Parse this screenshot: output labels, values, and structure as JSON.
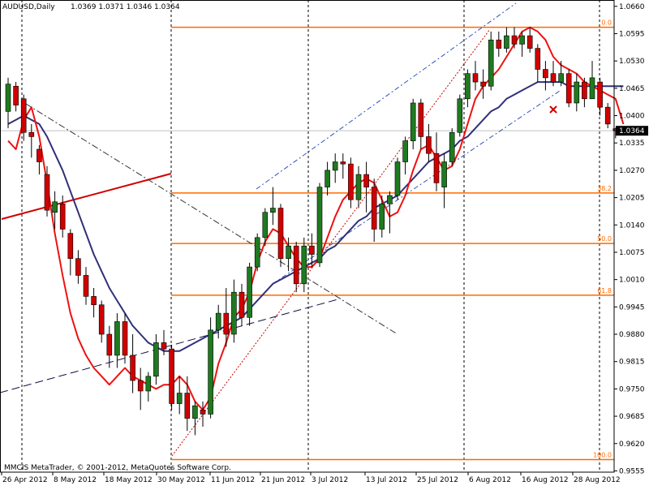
{
  "header": {
    "symbol": "AUDUSD,Daily",
    "ohlc": "1.0369 1.0371 1.0346 1.0364"
  },
  "footer": {
    "copyright": "MMCIS MetaTrader, © 2001-2012, MetaQuotes Software Corp."
  },
  "current_price": "1.0364",
  "colors": {
    "bull_candle": "#1f7a1f",
    "bear_candle": "#d10000",
    "fast_ma": "#ee1111",
    "slow_ma": "#303078",
    "fib": "#ff6a00",
    "trend_dash": "#3355bb"
  },
  "chart_data": {
    "type": "candlestick",
    "ylim": [
      0.9552,
      1.0675
    ],
    "y_ticks": [
      "1.0660",
      "1.0595",
      "1.0530",
      "1.0465",
      "1.0400",
      "1.0335",
      "1.0270",
      "1.0205",
      "1.0140",
      "1.0075",
      "1.0010",
      "0.9945",
      "0.9880",
      "0.9815",
      "0.9750",
      "0.9685",
      "0.9620",
      "0.9555"
    ],
    "x_labels": [
      "26 Apr 2012",
      "8 May 2012",
      "18 May 2012",
      "30 May 2012",
      "11 Jun 2012",
      "21 Jun 2012",
      "3 Jul 2012",
      "13 Jul 2012",
      "25 Jul 2012",
      "6 Aug 2012",
      "16 Aug 2012",
      "28 Aug 2012"
    ],
    "fib_levels": [
      {
        "label": "0.0",
        "price": 1.061
      },
      {
        "label": "38.2",
        "price": 1.0216
      },
      {
        "label": "50.0",
        "price": 1.0096
      },
      {
        "label": "61.8",
        "price": 0.9973
      },
      {
        "label": "100.0",
        "price": 0.9582
      }
    ],
    "candles": [
      {
        "o": 1.041,
        "h": 1.049,
        "l": 1.037,
        "c": 1.0475
      },
      {
        "o": 1.047,
        "h": 1.048,
        "l": 1.041,
        "c": 1.0425
      },
      {
        "o": 1.044,
        "h": 1.045,
        "l": 1.034,
        "c": 1.036
      },
      {
        "o": 1.036,
        "h": 1.038,
        "l": 1.03,
        "c": 1.035
      },
      {
        "o": 1.032,
        "h": 1.033,
        "l": 1.026,
        "c": 1.029
      },
      {
        "o": 1.026,
        "h": 1.028,
        "l": 1.016,
        "c": 1.0175
      },
      {
        "o": 1.017,
        "h": 1.022,
        "l": 1.013,
        "c": 1.0195
      },
      {
        "o": 1.019,
        "h": 1.021,
        "l": 1.011,
        "c": 1.013
      },
      {
        "o": 1.012,
        "h": 1.013,
        "l": 1.002,
        "c": 1.006
      },
      {
        "o": 1.006,
        "h": 1.008,
        "l": 1.0,
        "c": 1.002
      },
      {
        "o": 1.002,
        "h": 1.004,
        "l": 0.995,
        "c": 0.997
      },
      {
        "o": 0.997,
        "h": 0.999,
        "l": 0.992,
        "c": 0.995
      },
      {
        "o": 0.995,
        "h": 0.996,
        "l": 0.986,
        "c": 0.988
      },
      {
        "o": 0.988,
        "h": 0.99,
        "l": 0.98,
        "c": 0.983
      },
      {
        "o": 0.983,
        "h": 0.993,
        "l": 0.98,
        "c": 0.991
      },
      {
        "o": 0.991,
        "h": 0.993,
        "l": 0.981,
        "c": 0.983
      },
      {
        "o": 0.983,
        "h": 0.988,
        "l": 0.974,
        "c": 0.977
      },
      {
        "o": 0.977,
        "h": 0.98,
        "l": 0.97,
        "c": 0.9745
      },
      {
        "o": 0.9745,
        "h": 0.979,
        "l": 0.972,
        "c": 0.978
      },
      {
        "o": 0.978,
        "h": 0.988,
        "l": 0.976,
        "c": 0.986
      },
      {
        "o": 0.986,
        "h": 0.989,
        "l": 0.983,
        "c": 0.9845
      },
      {
        "o": 0.9845,
        "h": 0.9855,
        "l": 0.97,
        "c": 0.9715
      },
      {
        "o": 0.9715,
        "h": 0.978,
        "l": 0.969,
        "c": 0.974
      },
      {
        "o": 0.974,
        "h": 0.978,
        "l": 0.965,
        "c": 0.968
      },
      {
        "o": 0.968,
        "h": 0.972,
        "l": 0.964,
        "c": 0.971
      },
      {
        "o": 0.97,
        "h": 0.972,
        "l": 0.966,
        "c": 0.969
      },
      {
        "o": 0.969,
        "h": 0.992,
        "l": 0.968,
        "c": 0.989
      },
      {
        "o": 0.989,
        "h": 0.995,
        "l": 0.987,
        "c": 0.993
      },
      {
        "o": 0.993,
        "h": 0.999,
        "l": 0.985,
        "c": 0.988
      },
      {
        "o": 0.988,
        "h": 1.001,
        "l": 0.986,
        "c": 0.998
      },
      {
        "o": 0.998,
        "h": 1.0,
        "l": 0.99,
        "c": 0.992
      },
      {
        "o": 0.992,
        "h": 1.005,
        "l": 0.99,
        "c": 1.004
      },
      {
        "o": 1.004,
        "h": 1.012,
        "l": 1.003,
        "c": 1.011
      },
      {
        "o": 1.011,
        "h": 1.018,
        "l": 1.009,
        "c": 1.017
      },
      {
        "o": 1.017,
        "h": 1.023,
        "l": 1.014,
        "c": 1.018
      },
      {
        "o": 1.018,
        "h": 1.019,
        "l": 1.004,
        "c": 1.006
      },
      {
        "o": 1.006,
        "h": 1.011,
        "l": 1.003,
        "c": 1.009
      },
      {
        "o": 1.009,
        "h": 1.01,
        "l": 0.998,
        "c": 1.0
      },
      {
        "o": 1.0,
        "h": 1.011,
        "l": 0.998,
        "c": 1.009
      },
      {
        "o": 1.009,
        "h": 1.012,
        "l": 1.004,
        "c": 1.007
      },
      {
        "o": 1.005,
        "h": 1.024,
        "l": 1.004,
        "c": 1.023
      },
      {
        "o": 1.023,
        "h": 1.029,
        "l": 1.021,
        "c": 1.027
      },
      {
        "o": 1.027,
        "h": 1.031,
        "l": 1.024,
        "c": 1.029
      },
      {
        "o": 1.029,
        "h": 1.031,
        "l": 1.025,
        "c": 1.0285
      },
      {
        "o": 1.0285,
        "h": 1.03,
        "l": 1.018,
        "c": 1.02
      },
      {
        "o": 1.02,
        "h": 1.028,
        "l": 1.018,
        "c": 1.026
      },
      {
        "o": 1.026,
        "h": 1.029,
        "l": 1.017,
        "c": 1.023
      },
      {
        "o": 1.023,
        "h": 1.025,
        "l": 1.01,
        "c": 1.013
      },
      {
        "o": 1.013,
        "h": 1.021,
        "l": 1.011,
        "c": 1.019
      },
      {
        "o": 1.019,
        "h": 1.022,
        "l": 1.012,
        "c": 1.021
      },
      {
        "o": 1.021,
        "h": 1.03,
        "l": 1.02,
        "c": 1.029
      },
      {
        "o": 1.029,
        "h": 1.035,
        "l": 1.026,
        "c": 1.034
      },
      {
        "o": 1.034,
        "h": 1.044,
        "l": 1.032,
        "c": 1.043
      },
      {
        "o": 1.043,
        "h": 1.044,
        "l": 1.032,
        "c": 1.035
      },
      {
        "o": 1.035,
        "h": 1.038,
        "l": 1.029,
        "c": 1.031
      },
      {
        "o": 1.031,
        "h": 1.036,
        "l": 1.022,
        "c": 1.024
      },
      {
        "o": 1.023,
        "h": 1.031,
        "l": 1.018,
        "c": 1.029
      },
      {
        "o": 1.029,
        "h": 1.037,
        "l": 1.028,
        "c": 1.036
      },
      {
        "o": 1.036,
        "h": 1.045,
        "l": 1.035,
        "c": 1.044
      },
      {
        "o": 1.044,
        "h": 1.051,
        "l": 1.042,
        "c": 1.05
      },
      {
        "o": 1.05,
        "h": 1.053,
        "l": 1.046,
        "c": 1.048
      },
      {
        "o": 1.048,
        "h": 1.051,
        "l": 1.044,
        "c": 1.047
      },
      {
        "o": 1.047,
        "h": 1.06,
        "l": 1.046,
        "c": 1.058
      },
      {
        "o": 1.058,
        "h": 1.06,
        "l": 1.054,
        "c": 1.056
      },
      {
        "o": 1.056,
        "h": 1.061,
        "l": 1.055,
        "c": 1.059
      },
      {
        "o": 1.059,
        "h": 1.061,
        "l": 1.056,
        "c": 1.057
      },
      {
        "o": 1.057,
        "h": 1.06,
        "l": 1.054,
        "c": 1.059
      },
      {
        "o": 1.059,
        "h": 1.061,
        "l": 1.055,
        "c": 1.056
      },
      {
        "o": 1.056,
        "h": 1.057,
        "l": 1.048,
        "c": 1.051
      },
      {
        "o": 1.051,
        "h": 1.053,
        "l": 1.046,
        "c": 1.049
      },
      {
        "o": 1.05,
        "h": 1.053,
        "l": 1.047,
        "c": 1.048
      },
      {
        "o": 1.048,
        "h": 1.053,
        "l": 1.047,
        "c": 1.05
      },
      {
        "o": 1.05,
        "h": 1.051,
        "l": 1.042,
        "c": 1.043
      },
      {
        "o": 1.043,
        "h": 1.05,
        "l": 1.041,
        "c": 1.048
      },
      {
        "o": 1.048,
        "h": 1.049,
        "l": 1.042,
        "c": 1.044
      },
      {
        "o": 1.044,
        "h": 1.053,
        "l": 1.044,
        "c": 1.049
      },
      {
        "o": 1.048,
        "h": 1.049,
        "l": 1.04,
        "c": 1.042
      },
      {
        "o": 1.042,
        "h": 1.043,
        "l": 1.037,
        "c": 1.038
      },
      {
        "o": 1.0369,
        "h": 1.0371,
        "l": 1.0346,
        "c": 1.0364
      }
    ],
    "fast_ma": [
      1.034,
      1.032,
      1.039,
      1.042,
      1.035,
      1.024,
      1.012,
      1.002,
      0.993,
      0.987,
      0.983,
      0.98,
      0.978,
      0.976,
      0.978,
      0.98,
      0.978,
      0.977,
      0.976,
      0.975,
      0.976,
      0.976,
      0.978,
      0.976,
      0.972,
      0.97,
      0.973,
      0.981,
      0.986,
      0.992,
      0.994,
      0.998,
      1.005,
      1.01,
      1.013,
      1.012,
      1.009,
      1.006,
      1.004,
      1.004,
      1.006,
      1.011,
      1.016,
      1.02,
      1.022,
      1.024,
      1.025,
      1.024,
      1.02,
      1.016,
      1.017,
      1.021,
      1.027,
      1.032,
      1.033,
      1.03,
      1.027,
      1.028,
      1.032,
      1.038,
      1.044,
      1.047,
      1.049,
      1.051,
      1.054,
      1.057,
      1.06,
      1.061,
      1.06,
      1.058,
      1.054,
      1.052,
      1.051,
      1.05,
      1.048,
      1.047,
      1.046,
      1.045,
      1.044,
      1.038
    ],
    "slow_ma": [
      1.038,
      1.039,
      1.04,
      1.039,
      1.038,
      1.035,
      1.031,
      1.027,
      1.022,
      1.017,
      1.012,
      1.007,
      1.003,
      0.999,
      0.996,
      0.993,
      0.99,
      0.988,
      0.986,
      0.985,
      0.984,
      0.984,
      0.984,
      0.985,
      0.986,
      0.987,
      0.988,
      0.989,
      0.99,
      0.991,
      0.992,
      0.994,
      0.996,
      0.998,
      1.0,
      1.001,
      1.002,
      1.003,
      1.004,
      1.005,
      1.006,
      1.008,
      1.009,
      1.011,
      1.013,
      1.015,
      1.016,
      1.018,
      1.019,
      1.02,
      1.021,
      1.023,
      1.025,
      1.027,
      1.029,
      1.03,
      1.031,
      1.032,
      1.034,
      1.035,
      1.037,
      1.039,
      1.041,
      1.042,
      1.044,
      1.045,
      1.046,
      1.047,
      1.048,
      1.048,
      1.048,
      1.048,
      1.047,
      1.047,
      1.047,
      1.047,
      1.047,
      1.047,
      1.047,
      1.047
    ]
  }
}
